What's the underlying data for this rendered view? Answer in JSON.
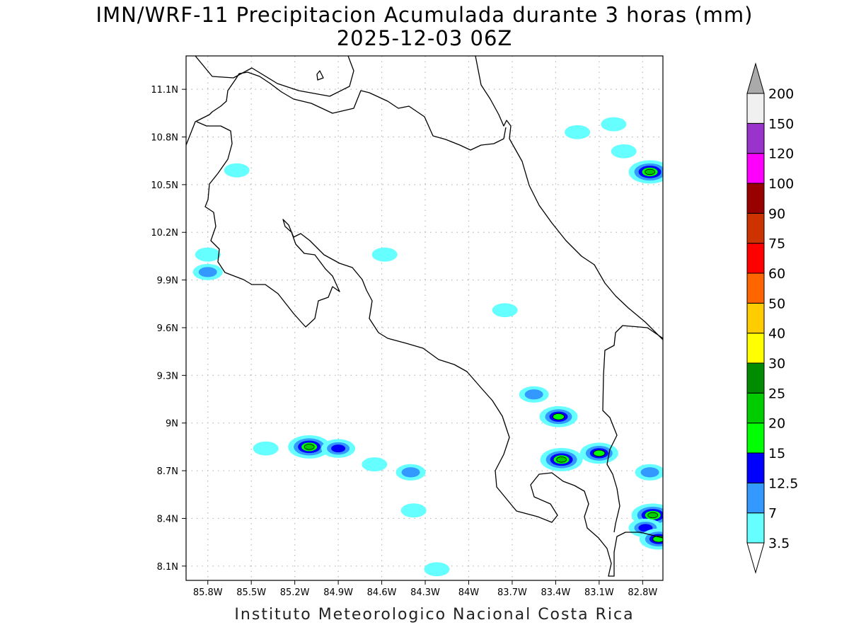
{
  "title": {
    "line1": "IMN/WRF-11 Precipitacion Acumulada durante 3 horas (mm)",
    "line2": "2025-12-03 06Z"
  },
  "credit": "Instituto Meteorologico Nacional Costa Rica",
  "map": {
    "lon_range": [
      -85.95,
      -82.66
    ],
    "lat_range": [
      8.01,
      11.31
    ],
    "lon_ticks": [
      {
        "value": -85.8,
        "label": "85.8W"
      },
      {
        "value": -85.5,
        "label": "85.5W"
      },
      {
        "value": -85.2,
        "label": "85.2W"
      },
      {
        "value": -84.9,
        "label": "84.9W"
      },
      {
        "value": -84.6,
        "label": "84.6W"
      },
      {
        "value": -84.3,
        "label": "84.3W"
      },
      {
        "value": -84.0,
        "label": "84W"
      },
      {
        "value": -83.7,
        "label": "83.7W"
      },
      {
        "value": -83.4,
        "label": "83.4W"
      },
      {
        "value": -83.1,
        "label": "83.1W"
      },
      {
        "value": -82.8,
        "label": "82.8W"
      }
    ],
    "lat_ticks": [
      {
        "value": 11.1,
        "label": "11.1N"
      },
      {
        "value": 10.8,
        "label": "10.8N"
      },
      {
        "value": 10.5,
        "label": "10.5N"
      },
      {
        "value": 10.2,
        "label": "10.2N"
      },
      {
        "value": 9.9,
        "label": "9.9N"
      },
      {
        "value": 9.6,
        "label": "9.6N"
      },
      {
        "value": 9.3,
        "label": "9.3N"
      },
      {
        "value": 9.0,
        "label": "9N"
      },
      {
        "value": 8.7,
        "label": "8.7N"
      },
      {
        "value": 8.4,
        "label": "8.4N"
      },
      {
        "value": 8.1,
        "label": "8.1N"
      }
    ],
    "grid": true
  },
  "colorbar": {
    "levels": [
      {
        "label": "3.5",
        "color": "#66ffff"
      },
      {
        "label": "7",
        "color": "#3399ff"
      },
      {
        "label": "12.5",
        "color": "#0000ff"
      },
      {
        "label": "15",
        "color": "#00ff00"
      },
      {
        "label": "20",
        "color": "#00cc00"
      },
      {
        "label": "25",
        "color": "#008c00"
      },
      {
        "label": "30",
        "color": "#ffff00"
      },
      {
        "label": "40",
        "color": "#ffcc00"
      },
      {
        "label": "50",
        "color": "#ff6600"
      },
      {
        "label": "60",
        "color": "#ff0000"
      },
      {
        "label": "75",
        "color": "#cc3300"
      },
      {
        "label": "90",
        "color": "#990000"
      },
      {
        "label": "100",
        "color": "#ff00ff"
      },
      {
        "label": "120",
        "color": "#9933cc"
      },
      {
        "label": "150",
        "color": "#f0f0f0"
      },
      {
        "label": "200",
        "color": "#aaaaaa"
      }
    ]
  },
  "precipitation_cells": [
    {
      "lon": -85.6,
      "lat": 10.59,
      "level": "3.5"
    },
    {
      "lon": -85.8,
      "lat": 9.95,
      "level": "7"
    },
    {
      "lon": -85.8,
      "lat": 10.06,
      "level": "3.5"
    },
    {
      "lon": -84.58,
      "lat": 10.06,
      "level": "3.5"
    },
    {
      "lon": -83.75,
      "lat": 9.71,
      "level": "3.5"
    },
    {
      "lon": -85.4,
      "lat": 8.84,
      "level": "3.5"
    },
    {
      "lon": -85.1,
      "lat": 8.85,
      "level": "20"
    },
    {
      "lon": -84.9,
      "lat": 8.84,
      "level": "12.5"
    },
    {
      "lon": -84.65,
      "lat": 8.74,
      "level": "3.5"
    },
    {
      "lon": -84.4,
      "lat": 8.69,
      "level": "7"
    },
    {
      "lon": -84.38,
      "lat": 8.45,
      "level": "3.5"
    },
    {
      "lon": -84.22,
      "lat": 8.08,
      "level": "3.5"
    },
    {
      "lon": -83.55,
      "lat": 9.18,
      "level": "7"
    },
    {
      "lon": -83.38,
      "lat": 9.04,
      "level": "15"
    },
    {
      "lon": -83.36,
      "lat": 8.77,
      "level": "20"
    },
    {
      "lon": -83.1,
      "lat": 8.81,
      "level": "15"
    },
    {
      "lon": -82.75,
      "lat": 8.69,
      "level": "7"
    },
    {
      "lon": -82.73,
      "lat": 8.42,
      "level": "20"
    },
    {
      "lon": -82.78,
      "lat": 8.34,
      "level": "12.5"
    },
    {
      "lon": -82.69,
      "lat": 8.27,
      "level": "15"
    },
    {
      "lon": -82.93,
      "lat": 10.71,
      "level": "3.5"
    },
    {
      "lon": -82.75,
      "lat": 10.58,
      "level": "20"
    },
    {
      "lon": -83.0,
      "lat": 10.88,
      "level": "3.5"
    },
    {
      "lon": -83.25,
      "lat": 10.83,
      "level": "3.5"
    }
  ]
}
